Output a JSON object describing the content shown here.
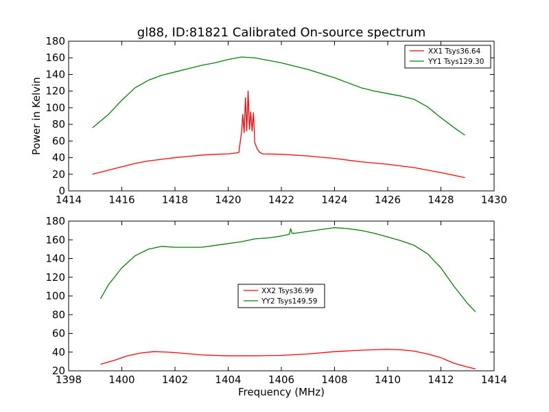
{
  "figure": {
    "title": "gl88, ID:81821 Calibrated On-source spectrum"
  },
  "chart_data": [
    {
      "type": "line",
      "title": "gl88, ID:81821 Calibrated On-source spectrum",
      "xlabel": "",
      "ylabel": "Power in Kelvin",
      "xlim": [
        1414,
        1430
      ],
      "ylim": [
        0,
        180
      ],
      "xticks": [
        1414,
        1416,
        1418,
        1420,
        1422,
        1424,
        1426,
        1428,
        1430
      ],
      "yticks": [
        0,
        20,
        40,
        60,
        80,
        100,
        120,
        140,
        160,
        180
      ],
      "grid": false,
      "legend_position": "top-right",
      "series": [
        {
          "name": "XX1 Tsys36.64",
          "color": "#ff0000",
          "x": [
            1414.9,
            1415.5,
            1416.0,
            1416.5,
            1417.0,
            1417.5,
            1418.0,
            1418.5,
            1419.0,
            1419.5,
            1420.0,
            1420.4,
            1420.5,
            1420.55,
            1420.6,
            1420.65,
            1420.7,
            1420.75,
            1420.8,
            1420.85,
            1420.9,
            1420.95,
            1421.0,
            1421.1,
            1421.2,
            1421.3,
            1422.0,
            1423.0,
            1424.0,
            1425.0,
            1426.0,
            1427.0,
            1428.0,
            1428.9
          ],
          "y": [
            20,
            25,
            29,
            33,
            36,
            38,
            40,
            41.5,
            43,
            44,
            44.5,
            46,
            70,
            92,
            70,
            112,
            72,
            120,
            74,
            95,
            72,
            94,
            58,
            50,
            46,
            44.5,
            44,
            42,
            39,
            35,
            32,
            28,
            22,
            16
          ]
        },
        {
          "name": "YY1 Tsys129.30",
          "color": "#008000",
          "x": [
            1414.9,
            1415.5,
            1416.0,
            1416.5,
            1417.0,
            1417.5,
            1418.0,
            1418.5,
            1419.0,
            1419.5,
            1420.0,
            1420.5,
            1421.0,
            1421.5,
            1422.0,
            1422.5,
            1423.0,
            1423.5,
            1424.0,
            1424.5,
            1425.0,
            1425.5,
            1426.0,
            1426.5,
            1427.0,
            1427.5,
            1428.0,
            1428.5,
            1428.9
          ],
          "y": [
            76,
            92,
            109,
            124,
            133,
            139,
            143,
            147,
            151,
            154,
            158,
            161,
            160,
            157,
            154,
            150,
            146,
            141,
            136,
            130,
            124,
            120,
            117,
            114,
            110,
            101,
            88,
            76,
            67
          ]
        }
      ]
    },
    {
      "type": "line",
      "title": "",
      "xlabel": "Frequency (MHz)",
      "ylabel": "",
      "xlim": [
        1398,
        1414
      ],
      "ylim": [
        20,
        180
      ],
      "xticks": [
        1398,
        1400,
        1402,
        1404,
        1406,
        1408,
        1410,
        1412,
        1414
      ],
      "yticks": [
        20,
        40,
        60,
        80,
        100,
        120,
        140,
        160,
        180
      ],
      "grid": false,
      "legend_position": "center",
      "series": [
        {
          "name": "XX2 Tsys36.99",
          "color": "#ff0000",
          "x": [
            1399.2,
            1399.7,
            1400.2,
            1400.7,
            1401.2,
            1401.7,
            1402.2,
            1403.0,
            1404.0,
            1405.0,
            1406.0,
            1407.0,
            1408.0,
            1409.0,
            1410.0,
            1410.5,
            1411.0,
            1411.5,
            1412.0,
            1412.5,
            1413.0,
            1413.3
          ],
          "y": [
            27,
            31,
            36,
            39,
            40.5,
            40,
            39,
            37,
            36,
            36,
            36.5,
            38,
            40.5,
            42,
            43,
            42.5,
            41,
            38,
            34,
            28,
            24,
            22
          ]
        },
        {
          "name": "YY2 Tsys149.59",
          "color": "#008000",
          "x": [
            1399.2,
            1399.5,
            1400.0,
            1400.5,
            1401.0,
            1401.5,
            1402.0,
            1402.5,
            1403.0,
            1403.5,
            1404.0,
            1404.5,
            1405.0,
            1405.5,
            1406.0,
            1406.3,
            1406.35,
            1406.4,
            1406.5,
            1407.0,
            1407.5,
            1408.0,
            1408.5,
            1409.0,
            1409.5,
            1410.0,
            1410.5,
            1411.0,
            1411.5,
            1412.0,
            1412.5,
            1413.0,
            1413.3
          ],
          "y": [
            97,
            112,
            130,
            143,
            150,
            153,
            152,
            152,
            152,
            154,
            156,
            158,
            161,
            162,
            164,
            166,
            172,
            167,
            167,
            169,
            171,
            173,
            172,
            170,
            167,
            163,
            159,
            154,
            145,
            130,
            110,
            92,
            83
          ]
        }
      ]
    }
  ]
}
